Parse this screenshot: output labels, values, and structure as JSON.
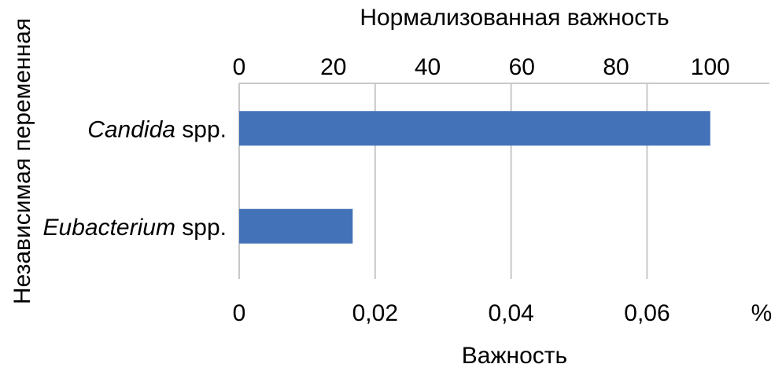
{
  "chart_data": {
    "type": "bar",
    "orientation": "horizontal",
    "title": "",
    "categories": [
      {
        "italic": "Candida",
        "suffix": " spp."
      },
      {
        "italic": "Eubacterium",
        "suffix": " spp."
      }
    ],
    "series": [
      {
        "values": [
          0.0693,
          0.0167
        ]
      }
    ],
    "x_bottom": {
      "label": "Важность",
      "range": [
        0,
        0.078
      ],
      "ticks": [
        "0",
        "0,02",
        "0,04",
        "0,06"
      ],
      "tick_values": [
        0,
        0.02,
        0.04,
        0.06
      ],
      "unit": "%"
    },
    "x_top": {
      "label": "Нормализованная важность",
      "ticks": [
        "0",
        "20",
        "40",
        "60",
        "80",
        "100"
      ],
      "tick_values": [
        0,
        20,
        40,
        60,
        80,
        100
      ]
    },
    "ylabel": "Независимая переменная",
    "grid": true,
    "bar_color": "#4472b8",
    "grid_color": "#c8c8c8"
  }
}
